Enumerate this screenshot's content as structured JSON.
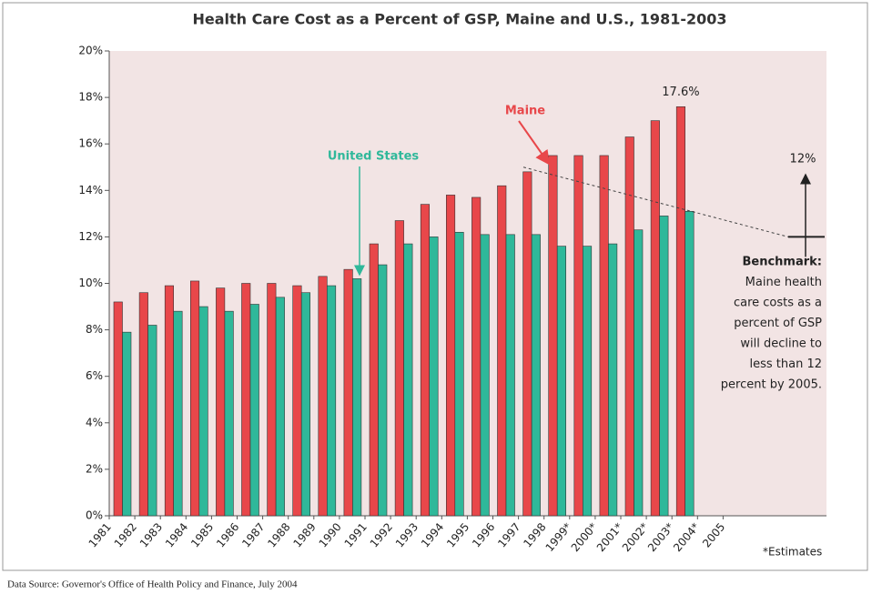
{
  "chart_data": {
    "type": "bar",
    "title": "Health Care Cost as a Percent of GSP, Maine and U.S., 1981-2003",
    "categories": [
      "1981",
      "1982",
      "1983",
      "1984",
      "1985",
      "1986",
      "1987",
      "1988",
      "1989",
      "1990",
      "1991",
      "1992",
      "1993",
      "1994",
      "1995",
      "1996",
      "1997",
      "1998",
      "1999*",
      "2000*",
      "2001*",
      "2002*",
      "2003*",
      "2004*",
      "2005"
    ],
    "series": [
      {
        "name": "Maine",
        "color": "#e8474a",
        "values": [
          9.2,
          9.6,
          9.9,
          10.1,
          9.8,
          10.0,
          10.0,
          9.9,
          10.3,
          10.6,
          11.7,
          12.7,
          13.4,
          13.8,
          13.7,
          14.2,
          14.8,
          15.5,
          15.5,
          15.5,
          16.3,
          17.0,
          17.6,
          null,
          null
        ],
        "value_labels": [
          null,
          null,
          null,
          null,
          null,
          null,
          null,
          null,
          null,
          null,
          null,
          null,
          null,
          null,
          null,
          null,
          null,
          null,
          null,
          null,
          null,
          null,
          "17.6%",
          null,
          null
        ]
      },
      {
        "name": "United States",
        "color": "#2fb89a",
        "values": [
          7.9,
          8.2,
          8.8,
          9.0,
          8.8,
          9.1,
          9.4,
          9.6,
          9.9,
          10.2,
          10.8,
          11.7,
          12.0,
          12.2,
          12.1,
          12.1,
          12.1,
          11.6,
          11.6,
          11.7,
          12.3,
          12.9,
          13.1,
          null,
          null
        ]
      }
    ],
    "ylim": [
      0,
      20
    ],
    "yticks": [
      {
        "value": 0,
        "label": "0%"
      },
      {
        "value": 2,
        "label": "2%"
      },
      {
        "value": 4,
        "label": "4%"
      },
      {
        "value": 6,
        "label": "6%"
      },
      {
        "value": 8,
        "label": "8%"
      },
      {
        "value": 10,
        "label": "10%"
      },
      {
        "value": 12,
        "label": "12%"
      },
      {
        "value": 14,
        "label": "14%"
      },
      {
        "value": 16,
        "label": "16%"
      },
      {
        "value": 18,
        "label": "18%"
      },
      {
        "value": 20,
        "label": "20%"
      }
    ],
    "benchmark": {
      "label": "12%",
      "value": 12,
      "start": 15,
      "text": [
        "Benchmark:",
        "Maine health",
        "care costs as a",
        "percent of GSP",
        "will decline to",
        "less than  12",
        "percent by 2005."
      ]
    },
    "footnote": "*Estimates",
    "source": "Data Source: Governor's Office of Health Policy and Finance, July 2004"
  }
}
